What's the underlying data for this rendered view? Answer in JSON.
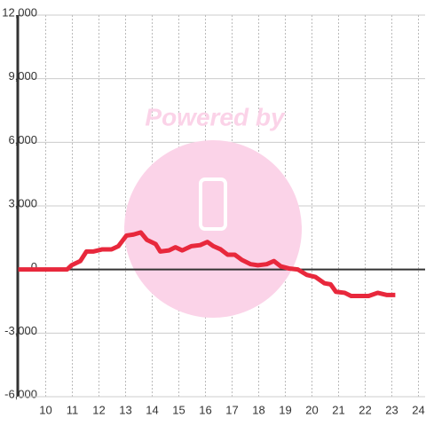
{
  "chart_data": {
    "type": "line",
    "watermark": "Powered by",
    "x": [
      8.97,
      10.8,
      10.97,
      11.3,
      11.53,
      11.8,
      12.13,
      12.47,
      12.73,
      13.03,
      13.3,
      13.57,
      13.8,
      14.13,
      14.3,
      14.63,
      14.87,
      15.13,
      15.47,
      15.8,
      16.07,
      16.3,
      16.57,
      16.83,
      17.1,
      17.37,
      17.7,
      17.97,
      18.3,
      18.57,
      18.83,
      19.13,
      19.47,
      19.8,
      20.13,
      20.47,
      20.7,
      20.9,
      21.23,
      21.47,
      21.8,
      22.13,
      22.47,
      22.8,
      23.13
    ],
    "series": [
      {
        "color": "#e8283c",
        "values": [
          0,
          0,
          200,
          400,
          850,
          850,
          950,
          950,
          1100,
          1600,
          1650,
          1750,
          1400,
          1200,
          850,
          900,
          1050,
          900,
          1100,
          1150,
          1300,
          1100,
          950,
          700,
          700,
          450,
          250,
          200,
          250,
          400,
          150,
          50,
          0,
          -250,
          -350,
          -650,
          -700,
          -1050,
          -1100,
          -1250,
          -1250,
          -1250,
          -1100,
          -1200,
          -1200
        ]
      }
    ],
    "xlim": [
      8.95,
      24.25
    ],
    "xticks": [
      10,
      11,
      12,
      13,
      14,
      15,
      16,
      17,
      18,
      19,
      20,
      21,
      22,
      23,
      24
    ],
    "ylim": [
      -6000,
      12000
    ],
    "yticks": [
      {
        "value": -6000,
        "label": "-6,000"
      },
      {
        "value": -3000,
        "label": "-3,000"
      },
      0,
      {
        "value": 3000,
        "label": "3,000"
      },
      {
        "value": 6000,
        "label": "6,000"
      },
      {
        "value": 9000,
        "label": "9,000"
      },
      {
        "value": 12000,
        "label": "12,000"
      }
    ],
    "grid": true
  }
}
